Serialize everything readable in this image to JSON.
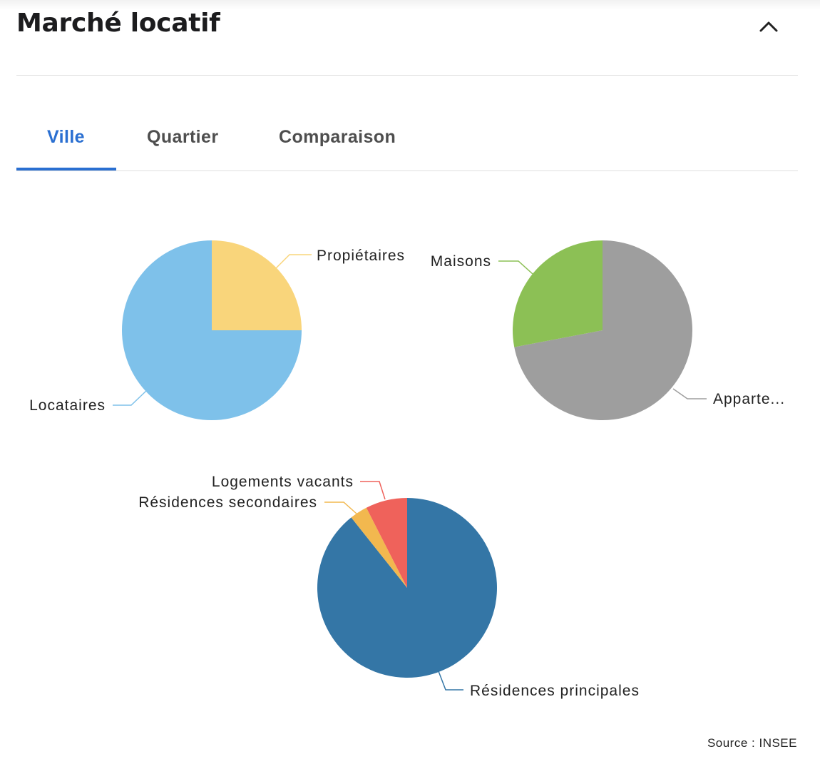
{
  "header": {
    "title": "Marché locatif",
    "collapse_icon": "chevron-up-icon"
  },
  "tabs": [
    {
      "label": "Ville",
      "active": true
    },
    {
      "label": "Quartier",
      "active": false
    },
    {
      "label": "Comparaison",
      "active": false
    }
  ],
  "chart_data": [
    {
      "type": "pie",
      "slices": [
        {
          "label": "Propiétaires",
          "value": 25,
          "color": "#f9d57b"
        },
        {
          "label": "Locataires",
          "value": 75,
          "color": "#7ec1ea"
        }
      ]
    },
    {
      "type": "pie",
      "slices": [
        {
          "label": "Apparte...",
          "value": 72,
          "color": "#9e9e9e"
        },
        {
          "label": "Maisons",
          "value": 28,
          "color": "#8cc055"
        }
      ]
    },
    {
      "type": "pie",
      "slices": [
        {
          "label": "Résidences principales",
          "value": 89.3,
          "color": "#3476a6"
        },
        {
          "label": "Résidences secondaires",
          "value": 3.2,
          "color": "#f2b84f"
        },
        {
          "label": "Logements vacants",
          "value": 7.5,
          "color": "#ef625b"
        }
      ]
    }
  ],
  "footer": {
    "source": "Source : INSEE"
  }
}
